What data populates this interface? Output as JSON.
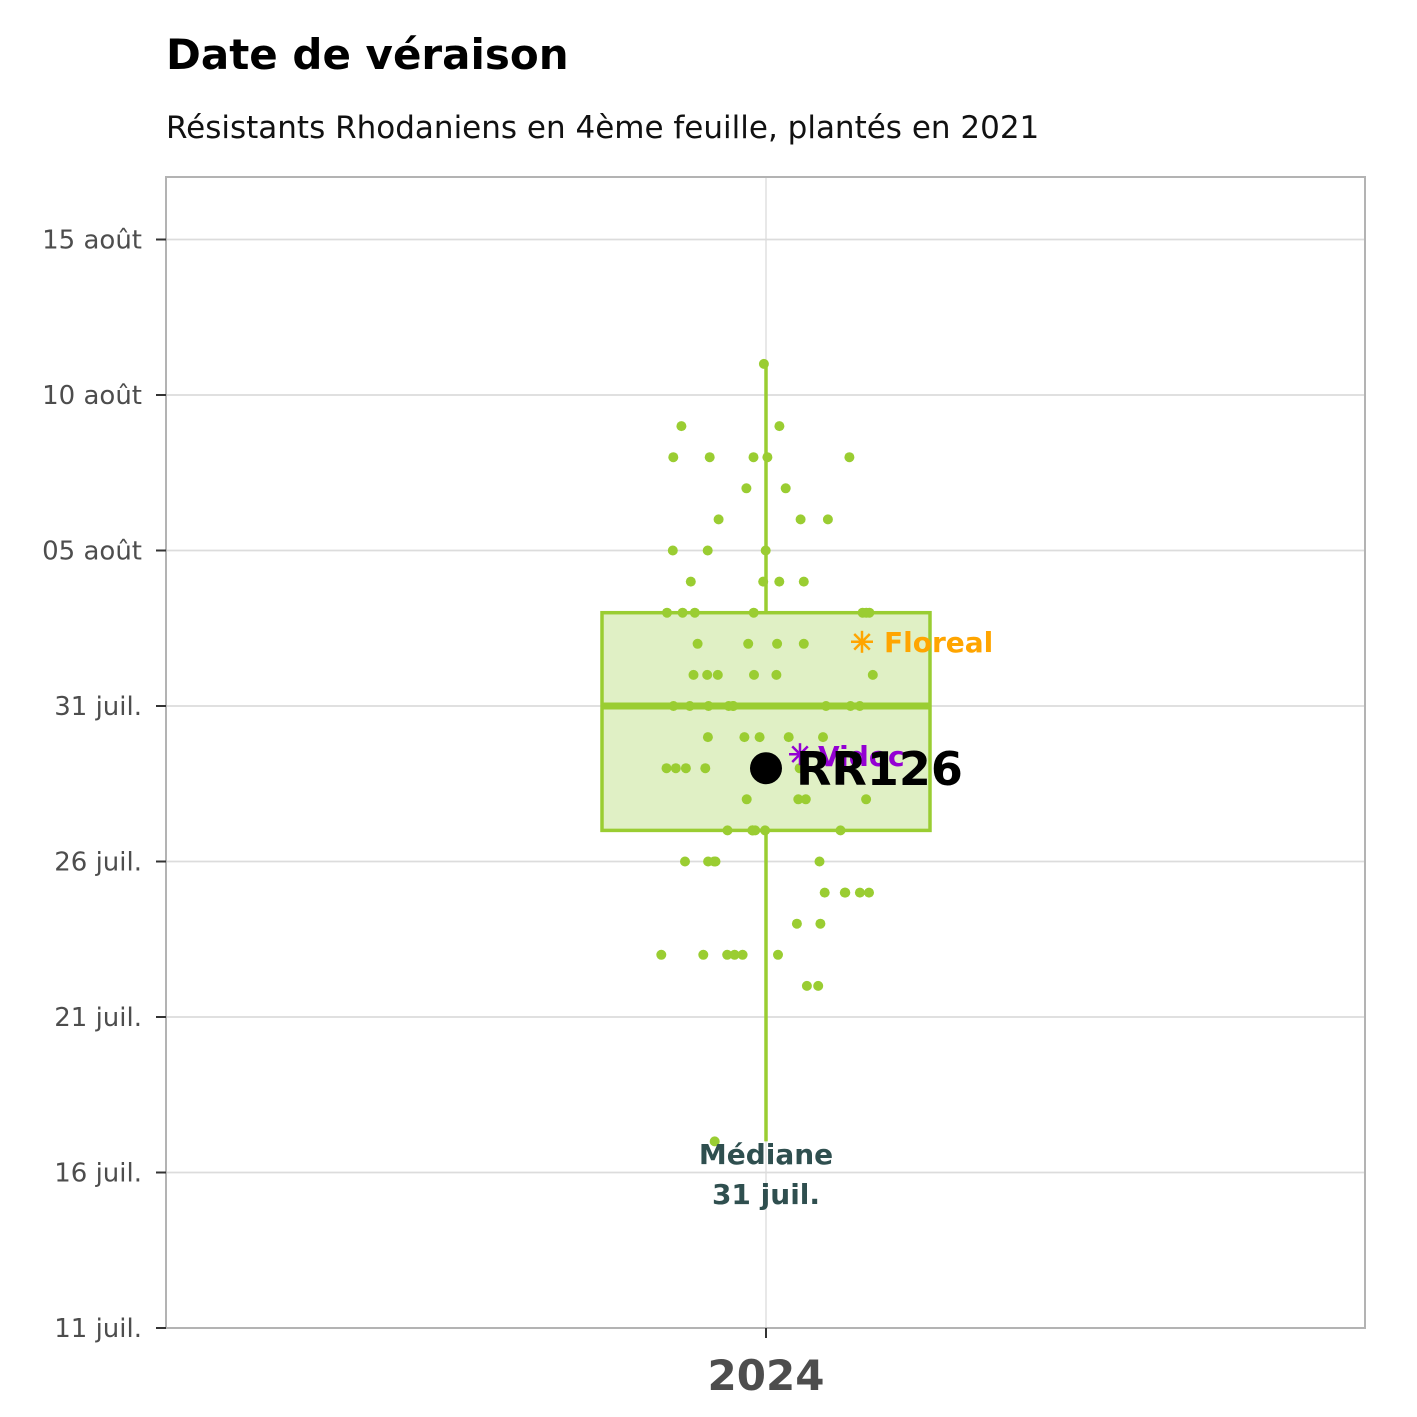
{
  "title": "Date de véraison",
  "subtitle": "Résistants Rhodaniens en 4ème feuille, plantés en 2021",
  "chart_data": {
    "type": "box",
    "x_categories": [
      "2024"
    ],
    "y_axis": {
      "type": "date",
      "range": [
        "2024-07-11",
        "2024-08-17"
      ],
      "ticks": [
        {
          "date": "2024-07-11",
          "label": "11 juil."
        },
        {
          "date": "2024-07-16",
          "label": "16 juil."
        },
        {
          "date": "2024-07-21",
          "label": "21 juil."
        },
        {
          "date": "2024-07-26",
          "label": "26 juil."
        },
        {
          "date": "2024-07-31",
          "label": "31 juil."
        },
        {
          "date": "2024-08-05",
          "label": "05 août"
        },
        {
          "date": "2024-08-10",
          "label": "10 août"
        },
        {
          "date": "2024-08-15",
          "label": "15 août"
        }
      ]
    },
    "box": {
      "category": "2024",
      "min": "2024-07-17",
      "q1": "2024-07-27",
      "median": "2024-07-31",
      "q3": "2024-08-03",
      "max": "2024-08-11",
      "color": "#9acd32",
      "fill": "#e0f0c5"
    },
    "points": [
      "2024-08-11",
      "2024-08-09",
      "2024-08-09",
      "2024-08-08",
      "2024-08-08",
      "2024-08-08",
      "2024-08-08",
      "2024-08-08",
      "2024-08-07",
      "2024-08-07",
      "2024-08-06",
      "2024-08-06",
      "2024-08-06",
      "2024-08-05",
      "2024-08-05",
      "2024-08-05",
      "2024-08-04",
      "2024-08-04",
      "2024-08-04",
      "2024-08-04",
      "2024-08-03",
      "2024-08-03",
      "2024-08-03",
      "2024-08-03",
      "2024-08-03",
      "2024-08-03",
      "2024-08-03",
      "2024-08-02",
      "2024-08-02",
      "2024-08-02",
      "2024-08-02",
      "2024-08-01",
      "2024-08-01",
      "2024-08-01",
      "2024-08-01",
      "2024-08-01",
      "2024-08-01",
      "2024-07-31",
      "2024-07-31",
      "2024-07-31",
      "2024-07-31",
      "2024-07-31",
      "2024-07-31",
      "2024-07-31",
      "2024-07-31",
      "2024-07-31",
      "2024-07-30",
      "2024-07-30",
      "2024-07-30",
      "2024-07-30",
      "2024-07-30",
      "2024-07-29",
      "2024-07-29",
      "2024-07-29",
      "2024-07-29",
      "2024-07-29",
      "2024-07-29",
      "2024-07-28",
      "2024-07-28",
      "2024-07-28",
      "2024-07-28",
      "2024-07-27",
      "2024-07-27",
      "2024-07-27",
      "2024-07-27",
      "2024-07-27",
      "2024-07-27",
      "2024-07-27",
      "2024-07-26",
      "2024-07-26",
      "2024-07-26",
      "2024-07-26",
      "2024-07-26",
      "2024-07-25",
      "2024-07-25",
      "2024-07-25",
      "2024-07-25",
      "2024-07-25",
      "2024-07-24",
      "2024-07-24",
      "2024-07-23",
      "2024-07-23",
      "2024-07-23",
      "2024-07-23",
      "2024-07-23",
      "2024-07-23",
      "2024-07-22",
      "2024-07-22",
      "2024-07-17"
    ],
    "highlights": [
      {
        "label": "RR126",
        "date": "2024-07-29",
        "marker": "circle",
        "color": "#000000"
      },
      {
        "label": "Floreal",
        "date": "2024-08-02",
        "marker": "asterisk",
        "color": "#ffa500"
      },
      {
        "label": "Vidoc",
        "date": "2024-07-29",
        "marker": "asterisk",
        "color": "#9400d3"
      }
    ],
    "annotation": {
      "line1": "Médiane",
      "line2": "31 juil.",
      "color": "#2f4f4f"
    },
    "grid": true
  }
}
